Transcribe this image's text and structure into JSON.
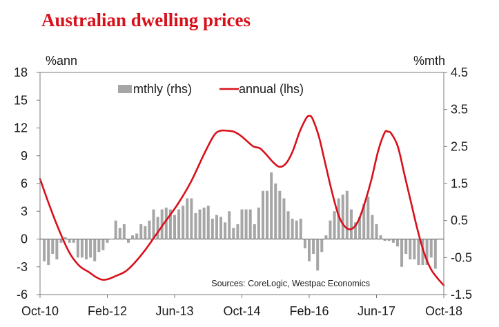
{
  "title": "Australian dwelling prices",
  "chart_data": {
    "type": "bar+line",
    "title": "Australian dwelling prices",
    "left_axis_unit": "%ann",
    "right_axis_unit": "%mth",
    "left_ylim": [
      -6,
      18
    ],
    "left_ticks": [
      "18",
      "15",
      "12",
      "9",
      "6",
      "3",
      "0",
      "-3",
      "-6"
    ],
    "right_ylim": [
      -1.5,
      4.5
    ],
    "right_ticks": [
      "4.5",
      "3.5",
      "2.5",
      "1.5",
      "0.5",
      "-0.5",
      "-1.5"
    ],
    "x_tick_labels": [
      "Oct-10",
      "Feb-12",
      "Jun-13",
      "Oct-14",
      "Feb-16",
      "Jun-17",
      "Oct-18"
    ],
    "legend": {
      "bar_label": "mthly (rhs)",
      "line_label": "annual (lhs)"
    },
    "source": "Sources: CoreLogic, Westpac Economics",
    "series": [
      {
        "name": "mthly (rhs)",
        "axis": "right",
        "type": "bar",
        "start_month": "Oct-10",
        "values": [
          -0.6,
          -0.7,
          -0.4,
          -0.55,
          -0.1,
          0.05,
          -0.1,
          -0.1,
          -0.5,
          -0.5,
          -0.55,
          -0.5,
          -0.6,
          -0.35,
          -0.3,
          -0.1,
          0.0,
          0.5,
          0.3,
          0.4,
          -0.1,
          0.1,
          0.15,
          0.4,
          0.35,
          0.5,
          0.8,
          0.6,
          0.8,
          0.85,
          0.8,
          0.65,
          0.8,
          0.9,
          1.1,
          1.1,
          0.7,
          0.8,
          0.85,
          0.9,
          0.55,
          0.65,
          0.6,
          0.45,
          0.75,
          0.3,
          0.4,
          0.8,
          0.8,
          0.8,
          0.4,
          0.85,
          1.3,
          1.3,
          1.8,
          1.5,
          1.3,
          1.1,
          0.75,
          0.55,
          0.5,
          0.55,
          -0.25,
          -0.6,
          -0.4,
          -0.85,
          -0.35,
          0.1,
          0.5,
          0.75,
          1.1,
          1.2,
          1.3,
          0.8,
          0.45,
          0.6,
          0.95,
          1.15,
          0.65,
          0.4,
          0.1,
          -0.05,
          -0.05,
          -0.1,
          -0.2,
          -0.75,
          -0.4,
          -0.55,
          -0.55,
          -0.7,
          -0.7,
          -0.7,
          -0.5,
          -0.8
        ]
      },
      {
        "name": "annual (lhs)",
        "axis": "left",
        "type": "line",
        "points": [
          [
            0,
            6.5
          ],
          [
            3,
            3.5
          ],
          [
            6,
            0.8
          ],
          [
            9,
            -1.5
          ],
          [
            12,
            -2.9
          ],
          [
            15,
            -3.6
          ],
          [
            17,
            -4.1
          ],
          [
            19,
            -4.4
          ],
          [
            21,
            -4.3
          ],
          [
            23,
            -4.0
          ],
          [
            26,
            -3.5
          ],
          [
            29,
            -2.5
          ],
          [
            32,
            -1.2
          ],
          [
            35,
            0.3
          ],
          [
            38,
            1.8
          ],
          [
            42,
            3.8
          ],
          [
            46,
            6.2
          ],
          [
            50,
            9.2
          ],
          [
            53,
            11.2
          ],
          [
            55,
            11.7
          ],
          [
            57,
            11.7
          ],
          [
            59,
            11.6
          ],
          [
            61,
            11.2
          ],
          [
            63,
            10.6
          ],
          [
            65,
            10.0
          ],
          [
            67,
            9.8
          ],
          [
            69,
            9.1
          ],
          [
            71,
            8.3
          ],
          [
            73,
            7.8
          ],
          [
            75,
            8.2
          ],
          [
            77,
            9.5
          ],
          [
            79,
            11.5
          ],
          [
            81,
            13.0
          ],
          [
            82,
            13.3
          ],
          [
            83,
            13.0
          ],
          [
            85,
            11.0
          ],
          [
            87,
            8.0
          ],
          [
            89,
            5.0
          ],
          [
            91,
            2.5
          ],
          [
            93,
            1.3
          ],
          [
            95,
            1.1
          ],
          [
            97,
            2.0
          ],
          [
            99,
            4.0
          ],
          [
            101,
            6.5
          ],
          [
            103,
            9.5
          ],
          [
            105,
            11.5
          ],
          [
            106,
            11.6
          ],
          [
            107,
            11.4
          ],
          [
            109,
            10.0
          ],
          [
            111,
            7.0
          ],
          [
            113,
            4.0
          ],
          [
            115,
            1.0
          ],
          [
            117,
            -1.5
          ],
          [
            119,
            -3.2
          ],
          [
            121,
            -4.2
          ],
          [
            123,
            -5.0
          ]
        ]
      }
    ]
  }
}
